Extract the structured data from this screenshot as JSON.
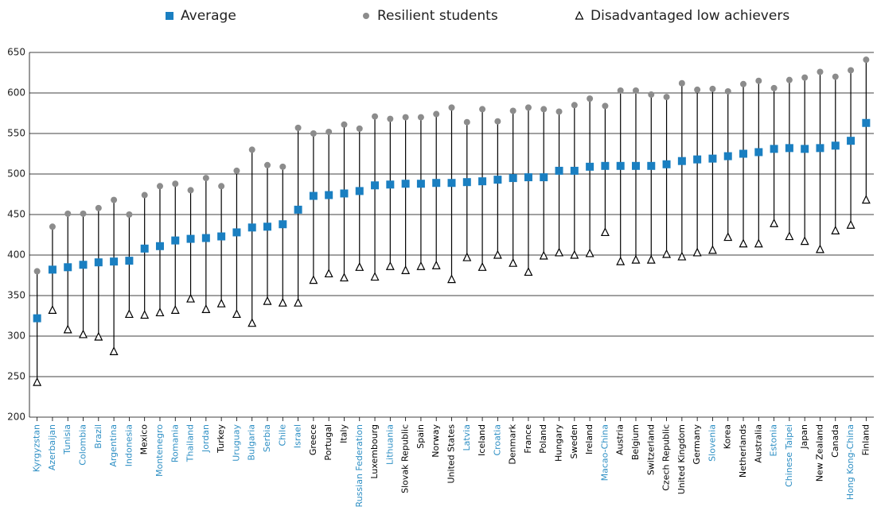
{
  "chart_data": {
    "type": "dot-range",
    "categories": [
      "Kyrgyzstan",
      "Azerbaijan",
      "Tunisia",
      "Colombia",
      "Brazil",
      "Argentina",
      "Indonesia",
      "Mexico",
      "Montenegro",
      "Romania",
      "Thailand",
      "Jordan",
      "Turkey",
      "Uruguay",
      "Bulgaria",
      "Serbia",
      "Chile",
      "Israel",
      "Greece",
      "Portugal",
      "Italy",
      "Russian Federation",
      "Luxembourg",
      "Lithuania",
      "Slovak Republic",
      "Spain",
      "Norway",
      "United States",
      "Latvia",
      "Iceland",
      "Croatia",
      "Denmark",
      "France",
      "Poland",
      "Hungary",
      "Sweden",
      "Ireland",
      "Macao-China",
      "Austria",
      "Belgium",
      "Switzerland",
      "Czech Republic",
      "United Kingdom",
      "Germany",
      "Slovenia",
      "Korea",
      "Netherlands",
      "Australia",
      "Estonia",
      "Chinese Taipei",
      "Japan",
      "New Zealand",
      "Canada",
      "Hong Kong-China",
      "Finland"
    ],
    "label_colors": [
      "#2e8fc4",
      "#2e8fc4",
      "#2e8fc4",
      "#2e8fc4",
      "#2e8fc4",
      "#2e8fc4",
      "#2e8fc4",
      "#000000",
      "#2e8fc4",
      "#2e8fc4",
      "#2e8fc4",
      "#2e8fc4",
      "#000000",
      "#2e8fc4",
      "#2e8fc4",
      "#2e8fc4",
      "#2e8fc4",
      "#2e8fc4",
      "#000000",
      "#000000",
      "#000000",
      "#2e8fc4",
      "#000000",
      "#2e8fc4",
      "#000000",
      "#000000",
      "#000000",
      "#000000",
      "#2e8fc4",
      "#000000",
      "#2e8fc4",
      "#000000",
      "#000000",
      "#000000",
      "#000000",
      "#000000",
      "#000000",
      "#2e8fc4",
      "#000000",
      "#000000",
      "#000000",
      "#000000",
      "#000000",
      "#000000",
      "#2e8fc4",
      "#000000",
      "#000000",
      "#000000",
      "#2e8fc4",
      "#2e8fc4",
      "#000000",
      "#000000",
      "#000000",
      "#2e8fc4",
      "#000000"
    ],
    "series": [
      {
        "name": "Average",
        "marker": "square",
        "color": "#1a7fc1",
        "values": [
          322,
          382,
          385,
          388,
          391,
          392,
          393,
          408,
          411,
          418,
          420,
          421,
          423,
          428,
          434,
          435,
          438,
          456,
          473,
          474,
          476,
          479,
          486,
          487,
          488,
          488,
          489,
          489,
          490,
          491,
          493,
          495,
          496,
          496,
          504,
          504,
          509,
          510,
          510,
          510,
          510,
          512,
          516,
          518,
          519,
          522,
          525,
          527,
          531,
          532,
          531,
          532,
          535,
          541,
          563
        ]
      },
      {
        "name": "Resilient students",
        "marker": "circle",
        "color": "#8c8c8c",
        "values": [
          380,
          435,
          451,
          451,
          458,
          468,
          450,
          474,
          485,
          488,
          480,
          495,
          485,
          504,
          530,
          511,
          509,
          557,
          550,
          552,
          561,
          556,
          571,
          568,
          570,
          570,
          574,
          582,
          564,
          580,
          565,
          578,
          582,
          580,
          577,
          585,
          593,
          584,
          603,
          603,
          598,
          595,
          612,
          604,
          605,
          602,
          611,
          615,
          606,
          616,
          619,
          626,
          620,
          628,
          641
        ]
      },
      {
        "name": "Disadvantaged low achievers",
        "marker": "triangle",
        "color": "#000000",
        "values": [
          243,
          332,
          308,
          302,
          299,
          281,
          327,
          326,
          329,
          332,
          346,
          333,
          340,
          327,
          316,
          343,
          341,
          341,
          369,
          377,
          372,
          385,
          373,
          386,
          381,
          386,
          387,
          370,
          397,
          385,
          400,
          390,
          379,
          399,
          403,
          400,
          402,
          428,
          392,
          394,
          394,
          401,
          398,
          403,
          406,
          422,
          414,
          414,
          439,
          423,
          417,
          407,
          430,
          437,
          468
        ]
      }
    ],
    "ylim": [
      200,
      650
    ],
    "yticks": [
      200,
      250,
      300,
      350,
      400,
      450,
      500,
      550,
      600,
      650
    ],
    "grid": true
  }
}
